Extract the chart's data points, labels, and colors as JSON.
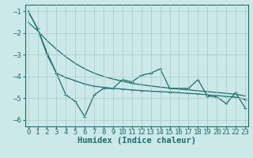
{
  "xlabel": "Humidex (Indice chaleur)",
  "bg_color": "#cde8e8",
  "grid_color": "#a8cccc",
  "line_color": "#1a6e6a",
  "x_data": [
    0,
    1,
    2,
    3,
    4,
    5,
    6,
    7,
    8,
    9,
    10,
    11,
    12,
    13,
    14,
    15,
    16,
    17,
    18,
    19,
    20,
    21,
    22,
    23
  ],
  "y_curve": [
    -1.0,
    -1.8,
    -3.0,
    -3.85,
    -4.05,
    -4.2,
    -4.35,
    -4.45,
    -4.5,
    -4.55,
    -4.58,
    -4.62,
    -4.65,
    -4.68,
    -4.7,
    -4.72,
    -4.75,
    -4.78,
    -4.8,
    -4.85,
    -4.88,
    -4.92,
    -4.95,
    -5.05
  ],
  "y_jagged": [
    -1.0,
    -1.8,
    -2.9,
    -3.85,
    -4.85,
    -5.15,
    -5.85,
    -4.85,
    -4.55,
    -4.55,
    -4.15,
    -4.25,
    -3.95,
    -3.85,
    -3.65,
    -4.55,
    -4.55,
    -4.55,
    -4.15,
    -4.9,
    -4.95,
    -5.25,
    -4.75,
    -5.45
  ],
  "y_linear": [
    -1.5,
    -1.9,
    -2.35,
    -2.75,
    -3.1,
    -3.4,
    -3.65,
    -3.85,
    -4.0,
    -4.12,
    -4.22,
    -4.32,
    -4.38,
    -4.44,
    -4.49,
    -4.54,
    -4.58,
    -4.62,
    -4.66,
    -4.7,
    -4.74,
    -4.78,
    -4.82,
    -4.9
  ],
  "ylim": [
    -6.3,
    -0.7
  ],
  "xlim": [
    -0.3,
    23.3
  ],
  "yticks": [
    -6,
    -5,
    -4,
    -3,
    -2,
    -1
  ],
  "xticks": [
    0,
    1,
    2,
    3,
    4,
    5,
    6,
    7,
    8,
    9,
    10,
    11,
    12,
    13,
    14,
    15,
    16,
    17,
    18,
    19,
    20,
    21,
    22,
    23
  ],
  "tick_fontsize": 6.5,
  "xlabel_fontsize": 7.5,
  "marker": "+"
}
